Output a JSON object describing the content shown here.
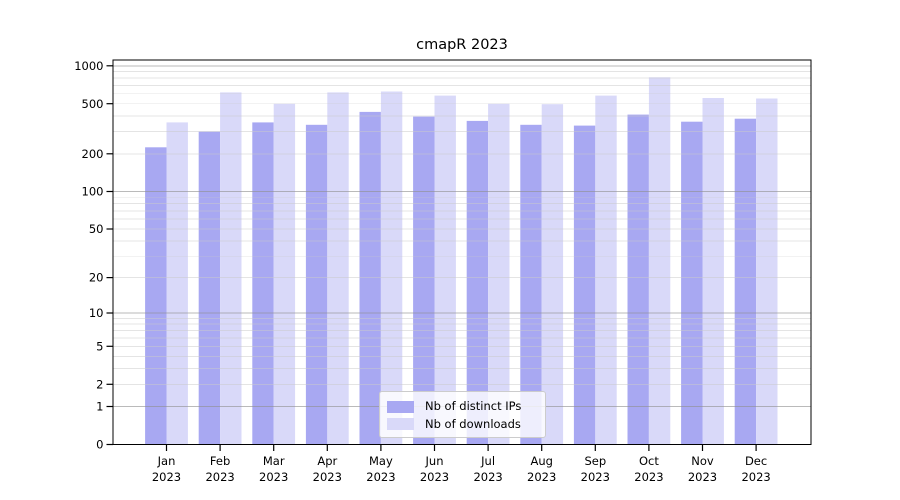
{
  "chart_data": {
    "type": "bar",
    "title": "cmapR 2023",
    "xlabel": "",
    "ylabel": "",
    "yscale": "log1p",
    "ylim": [
      0,
      1100
    ],
    "yticks": [
      0,
      1,
      2,
      5,
      10,
      20,
      50,
      100,
      200,
      500,
      1000
    ],
    "grid": "horizontal major and minor gridlines drawn over bars",
    "legend_position": "lower center",
    "months": [
      {
        "m": "Jan",
        "y": "2023"
      },
      {
        "m": "Feb",
        "y": "2023"
      },
      {
        "m": "Mar",
        "y": "2023"
      },
      {
        "m": "Apr",
        "y": "2023"
      },
      {
        "m": "May",
        "y": "2023"
      },
      {
        "m": "Jun",
        "y": "2023"
      },
      {
        "m": "Jul",
        "y": "2023"
      },
      {
        "m": "Aug",
        "y": "2023"
      },
      {
        "m": "Sep",
        "y": "2023"
      },
      {
        "m": "Oct",
        "y": "2023"
      },
      {
        "m": "Nov",
        "y": "2023"
      },
      {
        "m": "Dec",
        "y": "2023"
      }
    ],
    "series": [
      {
        "name": "Nb of distinct IPs",
        "color": "#a8a8f2",
        "values": [
          225,
          300,
          355,
          340,
          430,
          395,
          365,
          340,
          335,
          410,
          360,
          380
        ]
      },
      {
        "name": "Nb of downloads",
        "color": "#d9d9f9",
        "values": [
          355,
          615,
          500,
          615,
          625,
          580,
          500,
          495,
          580,
          810,
          555,
          550
        ]
      }
    ]
  }
}
